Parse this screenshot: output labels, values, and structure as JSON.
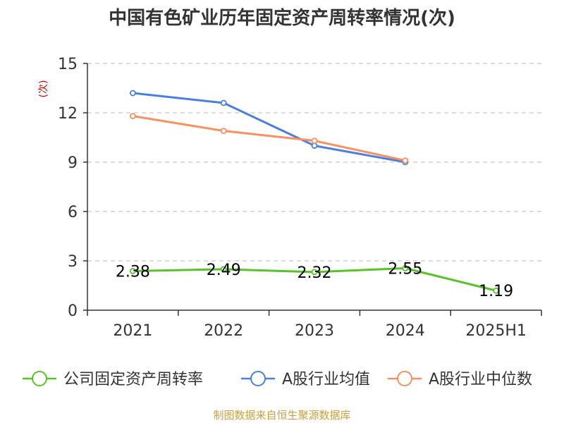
{
  "colors": {
    "series_company": "#59c22a",
    "series_industry_avg": "#4a7fe0",
    "series_industry_median": "#f89060",
    "unit_label": "#cc0000",
    "source_text": "#c8a040",
    "grid": "#c8c8c8"
  },
  "chart_data": {
    "type": "line",
    "title": "中国有色矿业历年固定资产周转率情况(次)",
    "ylabel": "(次)",
    "xlabel": "",
    "categories": [
      "2021",
      "2022",
      "2023",
      "2024",
      "2025H1"
    ],
    "ylim": [
      0,
      15
    ],
    "yticks": [
      0,
      3,
      6,
      9,
      12,
      15
    ],
    "ytick_labels": [
      "0",
      "3",
      "6",
      "9",
      "12",
      "15"
    ],
    "grid": true,
    "legend_position": "bottom",
    "series": [
      {
        "name": "公司固定资产周转率",
        "color_key": "series_company",
        "values": [
          2.38,
          2.49,
          2.32,
          2.55,
          1.19
        ],
        "labels": [
          "2.38",
          "2.49",
          "2.32",
          "2.55",
          "1.19"
        ]
      },
      {
        "name": "A股行业均值",
        "color_key": "series_industry_avg",
        "values": [
          13.2,
          12.6,
          10.0,
          9.0,
          null
        ]
      },
      {
        "name": "A股行业中位数",
        "color_key": "series_industry_median",
        "values": [
          11.8,
          10.9,
          10.3,
          9.1,
          null
        ]
      }
    ]
  },
  "source": "制图数据来自恒生聚源数据库"
}
